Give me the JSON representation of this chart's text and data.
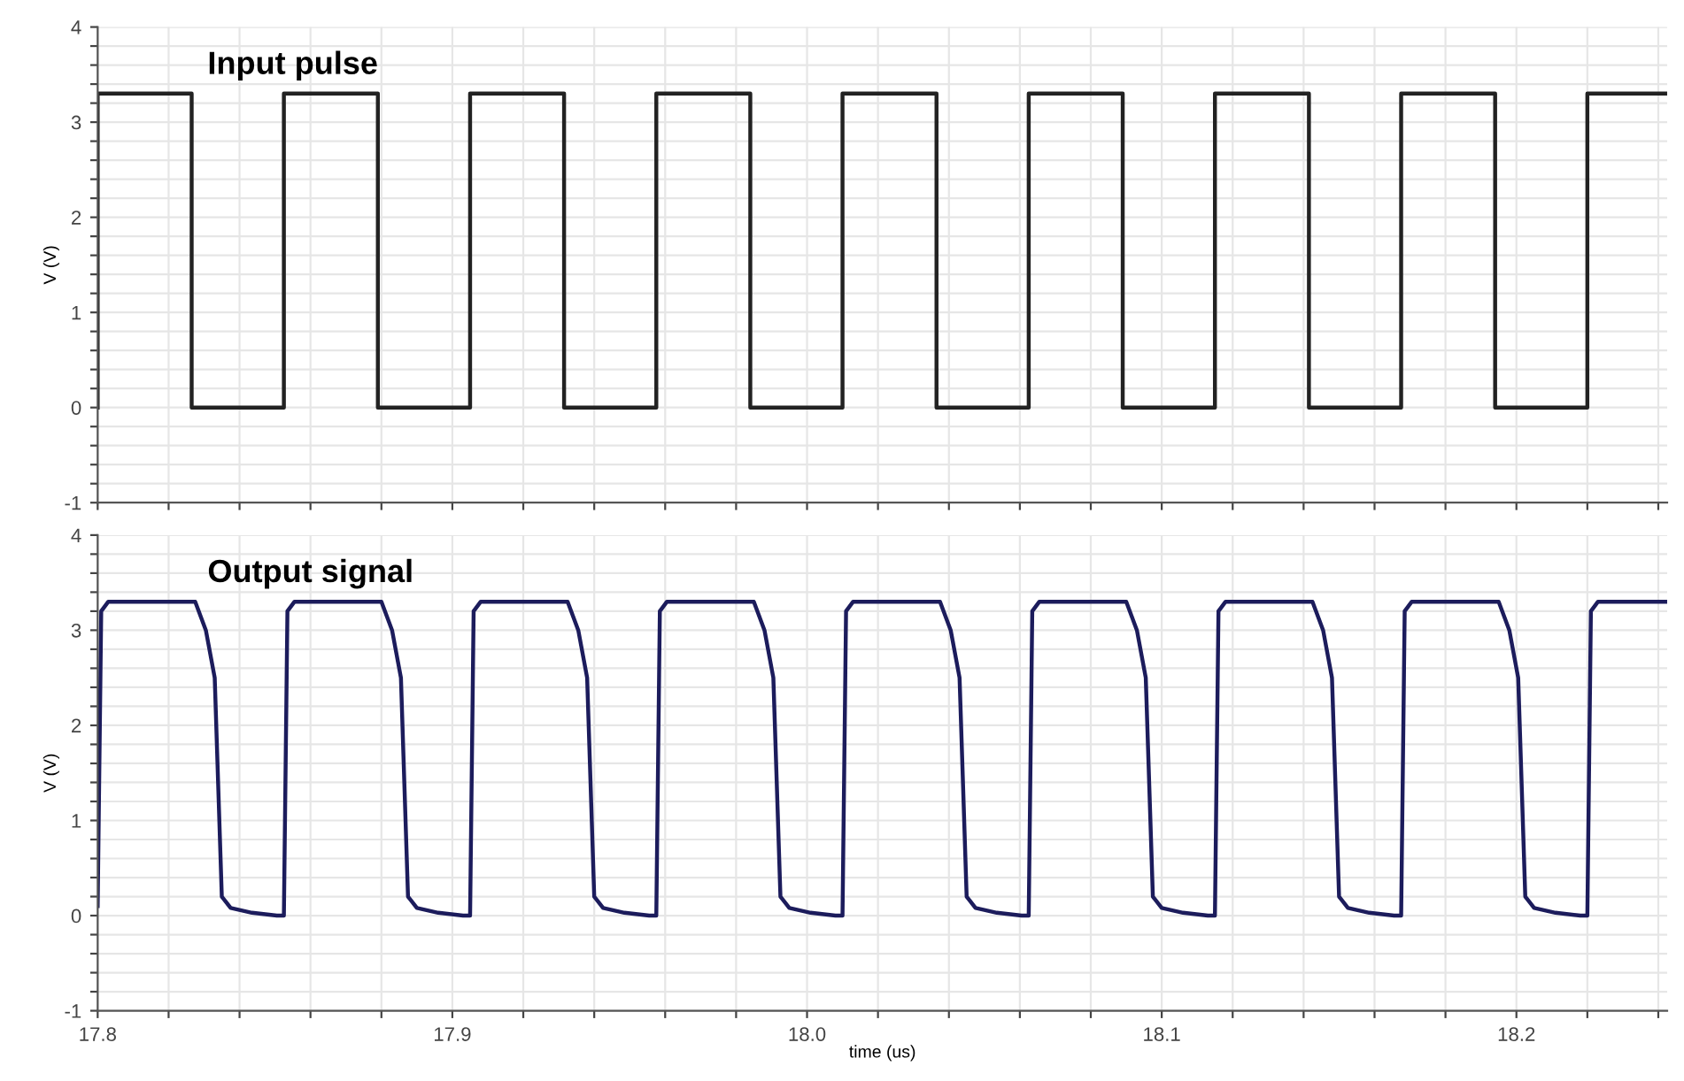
{
  "chart_data": [
    {
      "type": "line",
      "title": "Input pulse",
      "ylabel": "V (V)",
      "tick_labels": "y",
      "grid": true,
      "line_style": "solid",
      "xlim": [
        17.8,
        18.2425
      ],
      "ylim": [
        -1,
        4
      ],
      "xticks": [
        {
          "value": 17.8,
          "label": null
        },
        {
          "value": 17.82,
          "label": null
        },
        {
          "value": 17.84,
          "label": null
        },
        {
          "value": 17.86,
          "label": null
        },
        {
          "value": 17.88,
          "label": null
        },
        {
          "value": 17.9,
          "label": null
        },
        {
          "value": 17.92,
          "label": null
        },
        {
          "value": 17.94,
          "label": null
        },
        {
          "value": 17.96,
          "label": null
        },
        {
          "value": 17.98,
          "label": null
        },
        {
          "value": 18.0,
          "label": null
        },
        {
          "value": 18.02,
          "label": null
        },
        {
          "value": 18.04,
          "label": null
        },
        {
          "value": 18.06,
          "label": null
        },
        {
          "value": 18.08,
          "label": null
        },
        {
          "value": 18.1,
          "label": null
        },
        {
          "value": 18.12,
          "label": null
        },
        {
          "value": 18.14,
          "label": null
        },
        {
          "value": 18.16,
          "label": null
        },
        {
          "value": 18.18,
          "label": null
        },
        {
          "value": 18.2,
          "label": null
        },
        {
          "value": 18.22,
          "label": null
        },
        {
          "value": 18.24,
          "label": null
        }
      ],
      "yticks": [
        -1,
        {
          "value": -0.8,
          "label": null
        },
        {
          "value": -0.6,
          "label": null
        },
        {
          "value": -0.4,
          "label": null
        },
        {
          "value": -0.2,
          "label": null
        },
        0,
        {
          "value": 0.2,
          "label": null
        },
        {
          "value": 0.4,
          "label": null
        },
        {
          "value": 0.6,
          "label": null
        },
        {
          "value": 0.8,
          "label": null
        },
        1,
        {
          "value": 1.2,
          "label": null
        },
        {
          "value": 1.4,
          "label": null
        },
        {
          "value": 1.6,
          "label": null
        },
        {
          "value": 1.8,
          "label": null
        },
        2,
        {
          "value": 2.2,
          "label": null
        },
        {
          "value": 2.4,
          "label": null
        },
        {
          "value": 2.6,
          "label": null
        },
        {
          "value": 2.8,
          "label": null
        },
        3,
        {
          "value": 3.2,
          "label": null
        },
        {
          "value": 3.4,
          "label": null
        },
        {
          "value": 3.6,
          "label": null
        },
        {
          "value": 3.8,
          "label": null
        },
        4
      ],
      "series": [
        {
          "color": "#222222",
          "x": [
            17.8,
            17.8,
            17.8265,
            17.8265,
            17.8525,
            17.8525,
            17.879,
            17.879,
            17.905,
            17.905,
            17.9315,
            17.9315,
            17.9575,
            17.9575,
            17.984,
            17.984,
            18.01,
            18.01,
            18.0365,
            18.0365,
            18.0625,
            18.0625,
            18.089,
            18.089,
            18.115,
            18.115,
            18.1415,
            18.1415,
            18.1675,
            18.1675,
            18.194,
            18.194,
            18.22,
            18.22,
            18.2425
          ],
          "values": [
            0,
            3.3,
            3.3,
            0,
            0,
            3.3,
            3.3,
            0,
            0,
            3.3,
            3.3,
            0,
            0,
            3.3,
            3.3,
            0,
            0,
            3.3,
            3.3,
            0,
            0,
            3.3,
            3.3,
            0,
            0,
            3.3,
            3.3,
            0,
            0,
            3.3,
            3.3,
            0,
            0,
            3.3,
            3.3
          ]
        }
      ]
    },
    {
      "type": "line",
      "title": "Output signal",
      "ylabel": "V (V)",
      "xlabel": "time (us)",
      "grid": true,
      "line_style": "solid",
      "xlim": [
        17.8,
        18.2425
      ],
      "ylim": [
        -1,
        4
      ],
      "xticks": [
        {
          "value": 17.8,
          "label": "17.8"
        },
        {
          "value": 17.82,
          "label": null
        },
        {
          "value": 17.84,
          "label": null
        },
        {
          "value": 17.86,
          "label": null
        },
        {
          "value": 17.88,
          "label": null
        },
        17.9,
        {
          "value": 17.92,
          "label": null
        },
        {
          "value": 17.94,
          "label": null
        },
        {
          "value": 17.96,
          "label": null
        },
        {
          "value": 17.98,
          "label": null
        },
        {
          "value": 18.0,
          "label": "18.0"
        },
        {
          "value": 18.02,
          "label": null
        },
        {
          "value": 18.04,
          "label": null
        },
        {
          "value": 18.06,
          "label": null
        },
        {
          "value": 18.08,
          "label": null
        },
        18.1,
        {
          "value": 18.12,
          "label": null
        },
        {
          "value": 18.14,
          "label": null
        },
        {
          "value": 18.16,
          "label": null
        },
        {
          "value": 18.18,
          "label": null
        },
        18.2,
        {
          "value": 18.22,
          "label": null
        },
        {
          "value": 18.24,
          "label": null
        }
      ],
      "yticks": [
        -1,
        {
          "value": -0.8,
          "label": null
        },
        {
          "value": -0.6,
          "label": null
        },
        {
          "value": -0.4,
          "label": null
        },
        {
          "value": -0.2,
          "label": null
        },
        0,
        {
          "value": 0.2,
          "label": null
        },
        {
          "value": 0.4,
          "label": null
        },
        {
          "value": 0.6,
          "label": null
        },
        {
          "value": 0.8,
          "label": null
        },
        1,
        {
          "value": 1.2,
          "label": null
        },
        {
          "value": 1.4,
          "label": null
        },
        {
          "value": 1.6,
          "label": null
        },
        {
          "value": 1.8,
          "label": null
        },
        2,
        {
          "value": 2.2,
          "label": null
        },
        {
          "value": 2.4,
          "label": null
        },
        {
          "value": 2.6,
          "label": null
        },
        {
          "value": 2.8,
          "label": null
        },
        3,
        {
          "value": 3.2,
          "label": null
        },
        {
          "value": 3.4,
          "label": null
        },
        {
          "value": 3.6,
          "label": null
        },
        {
          "value": 3.8,
          "label": null
        },
        4
      ],
      "series": [
        {
          "color": "#1c1c5c",
          "x": [
            17.8,
            17.801,
            17.803,
            17.8275,
            17.8305,
            17.833,
            17.835,
            17.8375,
            17.8435,
            17.8505,
            17.8525,
            17.8535,
            17.8555,
            17.88,
            17.883,
            17.8855,
            17.8875,
            17.89,
            17.896,
            17.903,
            17.905,
            17.906,
            17.908,
            17.9325,
            17.9355,
            17.938,
            17.94,
            17.9425,
            17.9485,
            17.9555,
            17.9575,
            17.9585,
            17.9605,
            17.985,
            17.988,
            17.9905,
            17.9925,
            17.995,
            18.001,
            18.008,
            18.01,
            18.011,
            18.013,
            18.0375,
            18.0405,
            18.043,
            18.045,
            18.0475,
            18.0535,
            18.0605,
            18.0625,
            18.0635,
            18.0655,
            18.09,
            18.093,
            18.0955,
            18.0975,
            18.1,
            18.106,
            18.113,
            18.115,
            18.116,
            18.118,
            18.1425,
            18.1455,
            18.148,
            18.15,
            18.1525,
            18.1585,
            18.1655,
            18.1675,
            18.1685,
            18.1705,
            18.195,
            18.198,
            18.2005,
            18.2025,
            18.205,
            18.211,
            18.218,
            18.22,
            18.221,
            18.223,
            18.2425
          ],
          "values": [
            0.1,
            3.2,
            3.3,
            3.3,
            3.0,
            2.5,
            0.2,
            0.08,
            0.03,
            0.0,
            0.0,
            3.2,
            3.3,
            3.3,
            3.0,
            2.5,
            0.2,
            0.08,
            0.03,
            0.0,
            0.0,
            3.2,
            3.3,
            3.3,
            3.0,
            2.5,
            0.2,
            0.08,
            0.03,
            0.0,
            0.0,
            3.2,
            3.3,
            3.3,
            3.0,
            2.5,
            0.2,
            0.08,
            0.03,
            0.0,
            0.0,
            3.2,
            3.3,
            3.3,
            3.0,
            2.5,
            0.2,
            0.08,
            0.03,
            0.0,
            0.0,
            3.2,
            3.3,
            3.3,
            3.0,
            2.5,
            0.2,
            0.08,
            0.03,
            0.0,
            0.0,
            3.2,
            3.3,
            3.3,
            3.0,
            2.5,
            0.2,
            0.08,
            0.03,
            0.0,
            0.0,
            3.2,
            3.3,
            3.3,
            3.0,
            2.5,
            0.2,
            0.08,
            0.03,
            0.0,
            0.0,
            3.2,
            3.3,
            3.3
          ]
        }
      ]
    }
  ]
}
